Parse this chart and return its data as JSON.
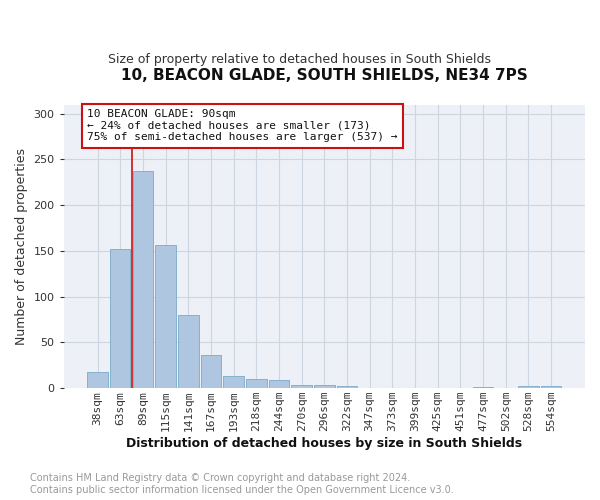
{
  "title": "10, BEACON GLADE, SOUTH SHIELDS, NE34 7PS",
  "subtitle": "Size of property relative to detached houses in South Shields",
  "xlabel": "Distribution of detached houses by size in South Shields",
  "ylabel": "Number of detached properties",
  "bin_labels": [
    "38sqm",
    "63sqm",
    "89sqm",
    "115sqm",
    "141sqm",
    "167sqm",
    "193sqm",
    "218sqm",
    "244sqm",
    "270sqm",
    "296sqm",
    "322sqm",
    "347sqm",
    "373sqm",
    "399sqm",
    "425sqm",
    "451sqm",
    "477sqm",
    "502sqm",
    "528sqm",
    "554sqm"
  ],
  "bar_heights": [
    18,
    152,
    237,
    156,
    80,
    36,
    13,
    10,
    9,
    4,
    4,
    2,
    0,
    0,
    0,
    0,
    0,
    1,
    0,
    2,
    2
  ],
  "bar_color": "#aec6df",
  "bar_edgecolor": "#7aaac8",
  "vline_color": "#cc1111",
  "annotation_text": "10 BEACON GLADE: 90sqm\n← 24% of detached houses are smaller (173)\n75% of semi-detached houses are larger (537) →",
  "annotation_box_edgecolor": "#cc1111",
  "ylim": [
    0,
    310
  ],
  "yticks": [
    0,
    50,
    100,
    150,
    200,
    250,
    300
  ],
  "grid_color": "#ccd5e0",
  "footer_text": "Contains HM Land Registry data © Crown copyright and database right 2024.\nContains public sector information licensed under the Open Government Licence v3.0.",
  "background_color": "#edf1f7",
  "title_fontsize": 11,
  "subtitle_fontsize": 9,
  "xlabel_fontsize": 9,
  "ylabel_fontsize": 9,
  "tick_fontsize": 8,
  "footer_fontsize": 7,
  "annotation_fontsize": 8
}
